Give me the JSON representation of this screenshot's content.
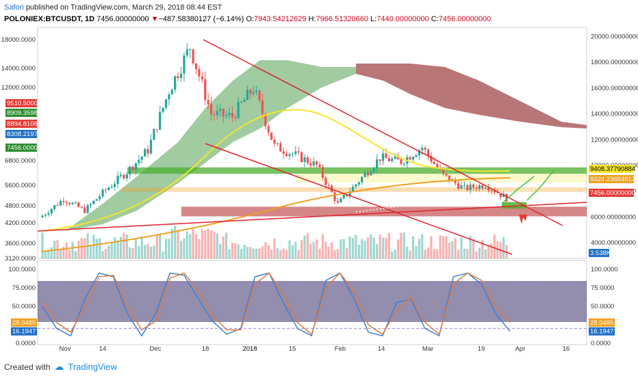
{
  "header": {
    "author": "Safori",
    "published_text": "published on TradingView.com, March 29, 2018 08:44 EST",
    "symbol": "POLONIEX:BTCUSDT, 1D",
    "last": "7456.00000000",
    "change_arrow": "▼",
    "change": "−487.58380127 (−6.14%)",
    "o_label": "O:",
    "o_value": "7943.54212629",
    "h_label": "H:",
    "h_value": "7966.51320660",
    "l_label": "L:",
    "l_value": "7440.00000000",
    "c_label": "C:",
    "c_value": "7456.00000000"
  },
  "footer": {
    "created_with": "Created with",
    "brand": "TradingView"
  },
  "colors": {
    "up": "#26a69a",
    "down": "#ef5350",
    "trendline": "#e0202b",
    "ema_yellow": "#f5e52b",
    "ema_orange": "#f0a020",
    "stoch_k": "#3d7fd6",
    "stoch_d": "#e07a3a",
    "stoch_bg": "#3b2f6b",
    "green_zone": "#4caf2f",
    "red_zone": "#b22222"
  },
  "chart_data": [
    {
      "type": "candlestick",
      "title": "POLONIEX:BTCUSDT, 1D",
      "x_tick_labels": [
        "Nov",
        "14",
        "Dec",
        "18",
        "2018",
        "15",
        "Feb",
        "14",
        "Mar",
        "19",
        "Apr",
        "16"
      ],
      "left_axis": {
        "tick_labels": [
          "18000.0000",
          "14000.0000",
          "12000.0000",
          "6800.0000",
          "5600.0000",
          "4800.0000",
          "4200.0000",
          "3600.0000",
          "3120.0000"
        ],
        "scale": "log",
        "marker_labels": [
          "9510.5000",
          "8909.3598",
          "8894.8106",
          "8308.2197",
          "7456.0000"
        ]
      },
      "right_axis": {
        "tick_labels": [
          "20000.00000000",
          "18000.00000000",
          "16000.00000000",
          "14000.00000000",
          "12000.00000000",
          "10000.00000000",
          "8000.00000000",
          "6000.00000000",
          "4000.00000000"
        ],
        "range": [
          3000,
          20500
        ],
        "marker_labels": [
          "9408.37790884",
          "9324.23664817",
          "7456.00000000",
          "3.538K"
        ]
      },
      "close_series_approx": [
        {
          "x": "Oct 28",
          "y": 6100
        },
        {
          "x": "Nov 05",
          "y": 7400
        },
        {
          "x": "Nov 12",
          "y": 6500
        },
        {
          "x": "Nov 19",
          "y": 8100
        },
        {
          "x": "Nov 26",
          "y": 9500
        },
        {
          "x": "Dec 03",
          "y": 11200
        },
        {
          "x": "Dec 10",
          "y": 15800
        },
        {
          "x": "Dec 17",
          "y": 19200
        },
        {
          "x": "Dec 24",
          "y": 14000
        },
        {
          "x": "Dec 31",
          "y": 13800
        },
        {
          "x": "Jan 07",
          "y": 16000
        },
        {
          "x": "Jan 14",
          "y": 11500
        },
        {
          "x": "Jan 21",
          "y": 10800
        },
        {
          "x": "Jan 28",
          "y": 10000
        },
        {
          "x": "Feb 04",
          "y": 7000
        },
        {
          "x": "Feb 11",
          "y": 8800
        },
        {
          "x": "Feb 18",
          "y": 10600
        },
        {
          "x": "Feb 25",
          "y": 10300
        },
        {
          "x": "Mar 04",
          "y": 11400
        },
        {
          "x": "Mar 11",
          "y": 9200
        },
        {
          "x": "Mar 18",
          "y": 8200
        },
        {
          "x": "Mar 25",
          "y": 8500
        },
        {
          "x": "Mar 29",
          "y": 7456
        }
      ]
    },
    {
      "type": "line",
      "title": "Stochastic RSI",
      "y_tick_labels": [
        "100.0000",
        "75.0000",
        "50.0000",
        "0.0000"
      ],
      "ylim": [
        0,
        100
      ],
      "marker_labels": [
        "28.0485",
        "16.1947"
      ],
      "series": [
        {
          "values": [
            50,
            20,
            10,
            60,
            95,
            90,
            40,
            10,
            40,
            95,
            92,
            60,
            30,
            12,
            20,
            90,
            95,
            55,
            20,
            10,
            85,
            95,
            60,
            15,
            10,
            55,
            60,
            20,
            10,
            90,
            95,
            80,
            40,
            16
          ]
        },
        {
          "values": [
            55,
            28,
            15,
            50,
            90,
            92,
            50,
            18,
            30,
            88,
            95,
            70,
            38,
            18,
            18,
            80,
            95,
            65,
            28,
            12,
            75,
            95,
            70,
            25,
            12,
            45,
            62,
            28,
            12,
            80,
            95,
            85,
            50,
            28
          ]
        }
      ]
    }
  ]
}
